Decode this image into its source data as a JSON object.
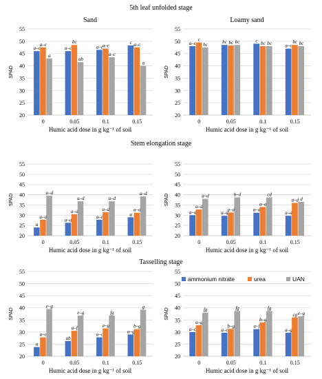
{
  "stage_titles": [
    "5th leaf unfolded stage",
    "Stem elongation stage",
    "Tasselling stage"
  ],
  "colors": {
    "ammonium_nitrate": "#4472C4",
    "urea": "#ED7D31",
    "UAN": "#A5A5A5",
    "grid": "#D9D9D9",
    "axis": "#BFBFBF"
  },
  "legend": [
    "ammonium nitrate",
    "urea",
    "UAN"
  ],
  "chart_data": [
    {
      "type": "bar",
      "title": "Sand",
      "xlabel": "Humic acid dose in g kg⁻¹ of soil",
      "ylabel": "SPAD",
      "categories": [
        "0",
        "0.05",
        "0.1",
        "0.15"
      ],
      "ylim": [
        20,
        55
      ],
      "yticks": [
        20,
        25,
        30,
        35,
        40,
        45,
        50,
        55
      ],
      "series": [
        {
          "name": "ammonium nitrate",
          "values": [
            46,
            46,
            46.5,
            48.3
          ],
          "labels": [
            "a–c",
            "a–c",
            "a–c",
            "c"
          ]
        },
        {
          "name": "urea",
          "values": [
            47.5,
            48.5,
            47,
            47.5
          ],
          "labels": [
            "a–c",
            "bc",
            "a–c",
            "a–c"
          ]
        },
        {
          "name": "UAN",
          "values": [
            43,
            41.5,
            43.5,
            40
          ],
          "labels": [
            "a",
            "ab",
            "a–c",
            "a"
          ]
        }
      ]
    },
    {
      "type": "bar",
      "title": "Loamy sand",
      "xlabel": "Humic acid dose in g kg⁻¹ of soil",
      "ylabel": "SPAD",
      "categories": [
        "0",
        "0.05",
        "0.1",
        "0.15"
      ],
      "ylim": [
        20,
        55
      ],
      "yticks": [
        20,
        25,
        30,
        35,
        40,
        45,
        50,
        55
      ],
      "series": [
        {
          "name": "ammonium nitrate",
          "values": [
            48,
            48.5,
            49,
            47
          ],
          "labels": [
            "a–c",
            "bc",
            "c",
            "a–c"
          ]
        },
        {
          "name": "urea",
          "values": [
            49.5,
            48.3,
            48,
            48.5
          ],
          "labels": [
            "c",
            "bc",
            "bc",
            "bc"
          ]
        },
        {
          "name": "UAN",
          "values": [
            47.5,
            48.5,
            48,
            48
          ],
          "labels": [
            "bc",
            "bc",
            "bc",
            "bc"
          ]
        }
      ]
    },
    {
      "type": "bar",
      "title": "",
      "xlabel": "Humic acid dose in g kg⁻¹ of soil",
      "ylabel": "SPAD",
      "categories": [
        "0",
        "0.05",
        "0.1",
        "0.15"
      ],
      "ylim": [
        20,
        55
      ],
      "yticks": [
        20,
        25,
        30,
        35,
        40,
        45,
        50,
        55
      ],
      "series": [
        {
          "name": "ammonium nitrate",
          "values": [
            24,
            26.3,
            27.8,
            29
          ],
          "labels": [
            "a",
            "a–d",
            "a–c",
            "a"
          ]
        },
        {
          "name": "urea",
          "values": [
            27.8,
            30.5,
            31.5,
            31.2
          ],
          "labels": [
            "a–d",
            "a–d",
            "a–d",
            "a–d"
          ]
        },
        {
          "name": "UAN",
          "values": [
            39.5,
            36.8,
            36.8,
            39.2
          ],
          "labels": [
            "a–d",
            "a–d",
            "a–d",
            "a–d"
          ]
        }
      ]
    },
    {
      "type": "bar",
      "title": "",
      "xlabel": "Humic acid dose in g kg⁻¹ of soil",
      "ylabel": "SPAD",
      "categories": [
        "0",
        "0.05",
        "0.1",
        "0.15"
      ],
      "ylim": [
        20,
        55
      ],
      "yticks": [
        20,
        25,
        30,
        35,
        40,
        45,
        50,
        55
      ],
      "series": [
        {
          "name": "ammonium nitrate",
          "values": [
            30,
            29.7,
            31.2,
            29.7
          ],
          "labels": [
            "a–d",
            "a–d",
            "a–d",
            "a–d"
          ]
        },
        {
          "name": "urea",
          "values": [
            32.8,
            31.3,
            34,
            36
          ],
          "labels": [
            "a–d",
            "a–d",
            "a–d",
            "a–d"
          ]
        },
        {
          "name": "UAN",
          "values": [
            38,
            38.7,
            38.7,
            36.5
          ],
          "labels": [
            "a–d",
            "b–d",
            "cd",
            "d"
          ]
        }
      ]
    },
    {
      "type": "bar",
      "title": "",
      "xlabel": "Humic acid dose in g kg⁻¹ of soil",
      "ylabel": "SPAD",
      "categories": [
        "0",
        "0.05",
        "0.1",
        "0.15"
      ],
      "ylim": [
        20,
        55
      ],
      "yticks": [
        20,
        25,
        30,
        35,
        40,
        45,
        50,
        55
      ],
      "series": [
        {
          "name": "ammonium nitrate",
          "values": [
            23.8,
            26.3,
            27.8,
            29
          ],
          "labels": [
            "a",
            "ab",
            "a–c",
            "a–g"
          ]
        },
        {
          "name": "urea",
          "values": [
            27.8,
            30.5,
            31.5,
            31.2
          ],
          "labels": [
            "a–c",
            "a–f",
            "a–g",
            "b–g"
          ]
        },
        {
          "name": "UAN",
          "values": [
            39.5,
            36.8,
            36.8,
            39.2
          ],
          "labels": [
            "e–g",
            "e–g",
            "fg",
            "g"
          ]
        }
      ]
    },
    {
      "type": "bar",
      "title": "",
      "xlabel": "Humic acid dose in g kg⁻¹ of soil",
      "ylabel": "SPAD",
      "categories": [
        "0",
        "0.05",
        "0.1",
        "0.15"
      ],
      "ylim": [
        20,
        55
      ],
      "yticks": [
        20,
        25,
        30,
        35,
        40,
        45,
        50,
        55
      ],
      "legend": [
        "ammonium nitrate",
        "urea",
        "UAN"
      ],
      "series": [
        {
          "name": "ammonium nitrate",
          "values": [
            30,
            29.7,
            31.2,
            29.7
          ],
          "labels": [
            "a–c",
            "a–c",
            "a–f",
            "a–g"
          ]
        },
        {
          "name": "urea",
          "values": [
            32.8,
            31.3,
            34,
            36
          ],
          "labels": [
            "a–g",
            "b–g",
            "b–g",
            "cg"
          ]
        },
        {
          "name": "UAN",
          "values": [
            38,
            38.7,
            38.7,
            36.5
          ],
          "labels": [
            "fg",
            "fg",
            "fg",
            "e–g"
          ]
        }
      ]
    }
  ]
}
